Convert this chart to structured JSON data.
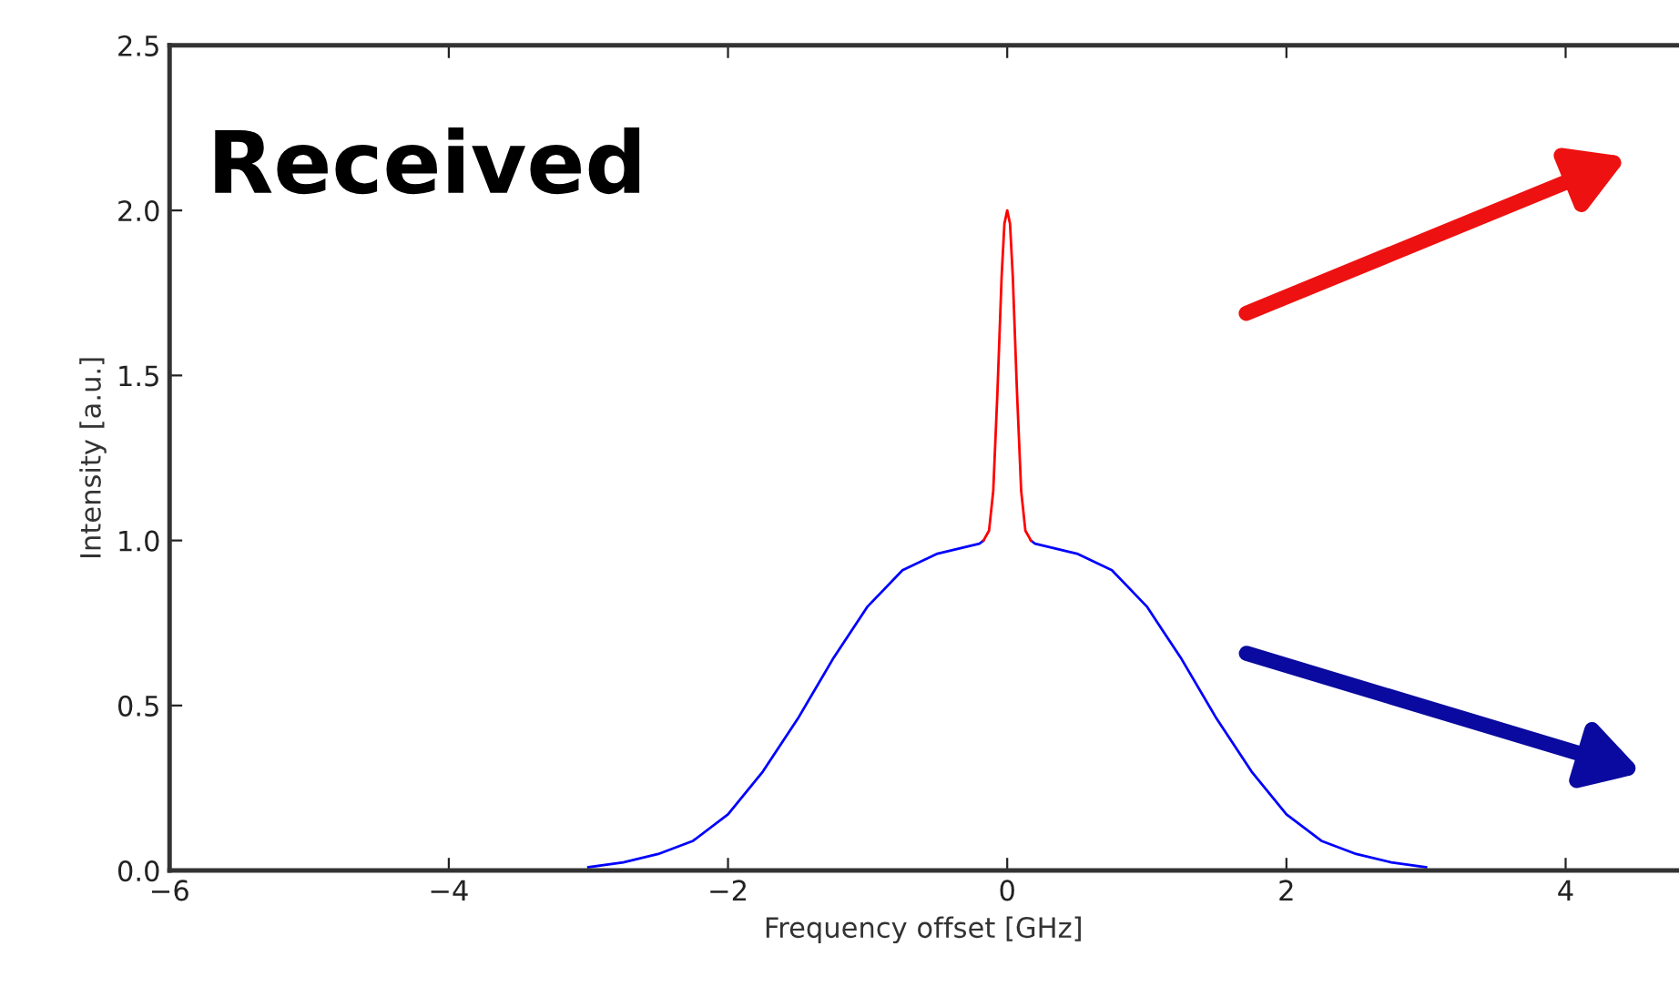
{
  "chart_data": {
    "type": "line",
    "xlabel": "Frequency offset [GHz]",
    "ylabel": "Intensity [a.u.]",
    "annotations": [
      "Received"
    ],
    "xlim": [
      -6,
      4.8
    ],
    "xticks": [
      {
        "value": -6,
        "label": "−6"
      },
      {
        "value": -4,
        "label": "−4"
      },
      {
        "value": -2,
        "label": "−2"
      },
      0,
      2,
      4
    ],
    "ylim": [
      0,
      2.5
    ],
    "yticks": [
      {
        "value": 0,
        "label": "0.0"
      },
      0.5,
      {
        "value": 1,
        "label": "1.0"
      },
      1.5,
      {
        "value": 2,
        "label": "2.0"
      },
      2.5
    ],
    "grid": false,
    "legend": false,
    "marker": "none",
    "line_style": "solid",
    "series": [
      {
        "color": "#0000ff",
        "x": [
          -3,
          -2.75,
          -2.5,
          -2.25,
          -2,
          -1.75,
          -1.5,
          -1.25,
          -1,
          -0.75,
          -0.5,
          -0.2,
          -0.17,
          0,
          0.17,
          0.2,
          0.5,
          0.75,
          1,
          1.25,
          1.5,
          1.75,
          2,
          2.25,
          2.5,
          2.75,
          3
        ],
        "values": [
          0.01,
          0.025,
          0.05,
          0.09,
          0.17,
          0.3,
          0.46,
          0.64,
          0.8,
          0.91,
          0.96,
          0.99,
          1.0,
          null,
          1.0,
          0.99,
          0.96,
          0.91,
          0.8,
          0.64,
          0.46,
          0.3,
          0.17,
          0.09,
          0.05,
          0.025,
          0.01
        ]
      },
      {
        "color": "#ff0000",
        "x": [
          -0.17,
          -0.13,
          -0.1,
          -0.07,
          -0.04,
          -0.02,
          0,
          0.02,
          0.04,
          0.07,
          0.1,
          0.13,
          0.17
        ],
        "values": [
          1.0,
          1.03,
          1.15,
          1.45,
          1.8,
          1.96,
          2.0,
          1.96,
          1.8,
          1.45,
          1.15,
          1.03,
          1.0
        ]
      }
    ]
  }
}
